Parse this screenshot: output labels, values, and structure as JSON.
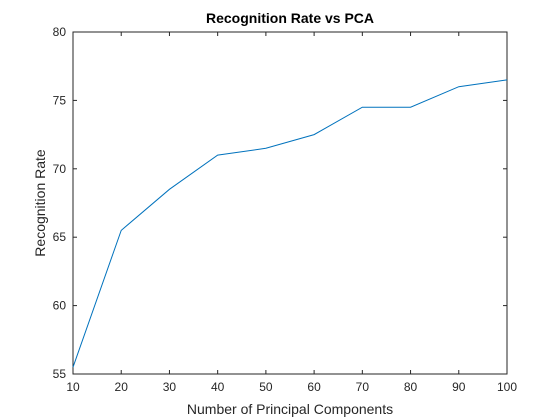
{
  "chart_data": {
    "type": "line",
    "title": "Recognition Rate vs PCA",
    "xlabel": "Number of Principal Components",
    "ylabel": "Recognition Rate",
    "x": [
      10,
      20,
      30,
      40,
      50,
      60,
      70,
      80,
      90,
      100
    ],
    "series": [
      {
        "values": [
          55.5,
          65.5,
          68.5,
          71.0,
          71.5,
          72.5,
          74.5,
          74.5,
          76.0,
          76.5
        ],
        "color": "#0072BD"
      }
    ],
    "xlim": [
      10,
      100
    ],
    "ylim": [
      55,
      80
    ],
    "xticks": [
      "10",
      "20",
      "30",
      "40",
      "50",
      "60",
      "70",
      "80",
      "90",
      "100"
    ],
    "yticks": [
      "55",
      "60",
      "65",
      "70",
      "75",
      "80"
    ],
    "grid": false,
    "legend": "none"
  }
}
